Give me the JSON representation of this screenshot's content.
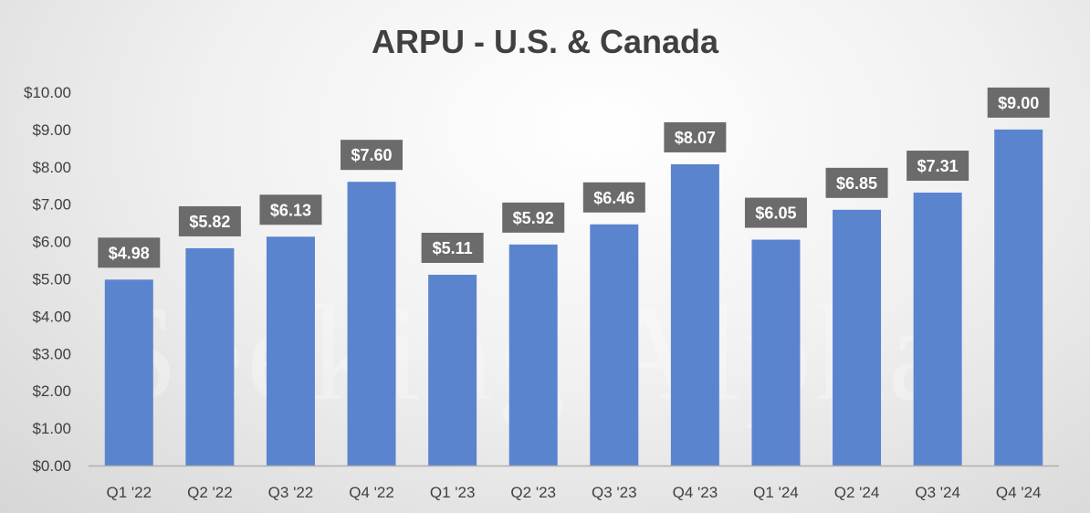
{
  "chart_data": {
    "type": "bar",
    "title": "ARPU - U.S. & Canada",
    "xlabel": "",
    "ylabel": "",
    "categories": [
      "Q1 '22",
      "Q2 '22",
      "Q3 '22",
      "Q4 '22",
      "Q1 '23",
      "Q2 '23",
      "Q3 '23",
      "Q4 '23",
      "Q1 '24",
      "Q2 '24",
      "Q3 '24",
      "Q4 '24"
    ],
    "values": [
      4.98,
      5.82,
      6.13,
      7.6,
      5.11,
      5.92,
      6.46,
      8.07,
      6.05,
      6.85,
      7.31,
      9.0
    ],
    "data_labels": [
      "$4.98",
      "$5.82",
      "$6.13",
      "$7.60",
      "$5.11",
      "$5.92",
      "$6.46",
      "$8.07",
      "$6.05",
      "$6.85",
      "$7.31",
      "$9.00"
    ],
    "ylim": [
      0,
      10
    ],
    "yticks": [
      "$0.00",
      "$1.00",
      "$2.00",
      "$3.00",
      "$4.00",
      "$5.00",
      "$6.00",
      "$7.00",
      "$8.00",
      "$9.00",
      "$10.00"
    ],
    "grid": false,
    "legend": "none",
    "bar_color": "#5b84cf",
    "label_background": "#6b6b6b",
    "watermark": "Seeking Alpha"
  }
}
